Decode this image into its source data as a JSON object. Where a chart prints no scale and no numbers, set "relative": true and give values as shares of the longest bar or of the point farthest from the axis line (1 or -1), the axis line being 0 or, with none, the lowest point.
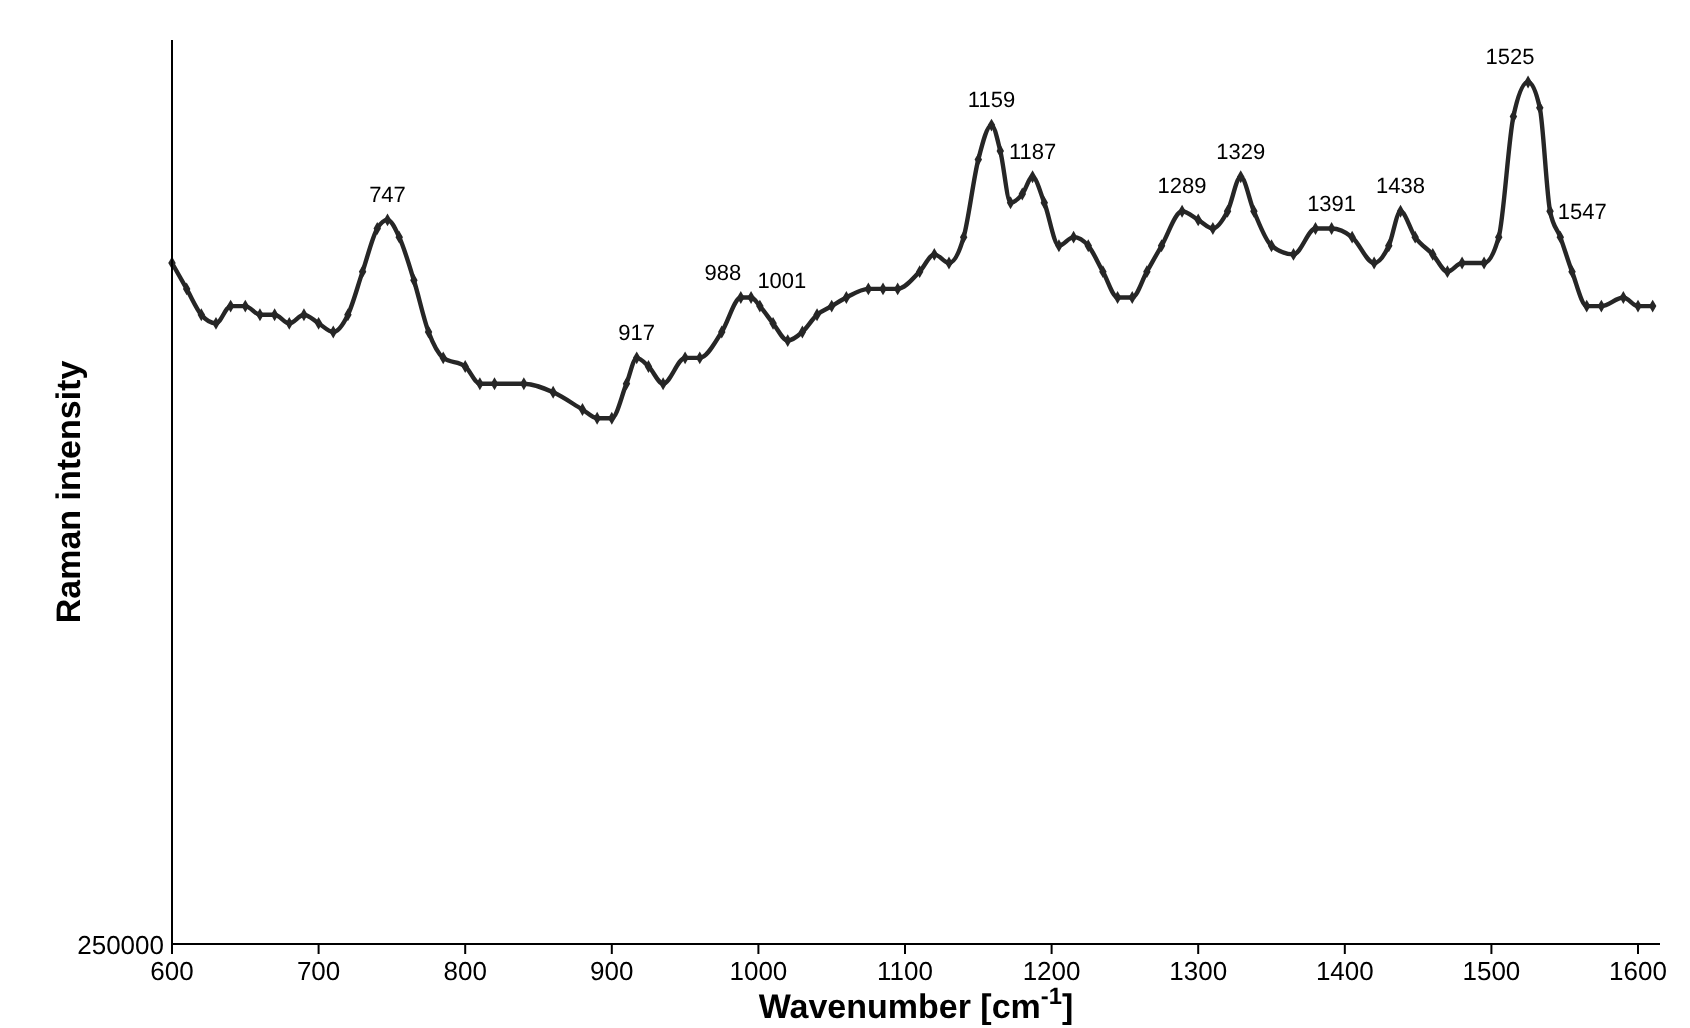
{
  "chart_data": {
    "type": "line",
    "relative": true,
    "xlabel": "Wavenumber [cm$^{-1}$]",
    "ylabel": "Raman intensity",
    "xlim": [
      600,
      1615
    ],
    "xticks": [
      600,
      700,
      800,
      900,
      1000,
      1100,
      1200,
      1300,
      1400,
      1500,
      1600
    ],
    "grid": false,
    "marker": "diamond",
    "line_style": "solid",
    "series": [
      {
        "color": "#262626",
        "x": [
          600,
          610,
          620,
          630,
          640,
          650,
          660,
          670,
          680,
          690,
          700,
          710,
          720,
          730,
          740,
          747,
          755,
          765,
          775,
          785,
          800,
          810,
          820,
          840,
          860,
          880,
          890,
          900,
          910,
          917,
          925,
          935,
          950,
          960,
          975,
          988,
          995,
          1001,
          1010,
          1020,
          1030,
          1040,
          1050,
          1060,
          1075,
          1085,
          1095,
          1110,
          1120,
          1130,
          1140,
          1150,
          1159,
          1165,
          1172,
          1180,
          1187,
          1195,
          1205,
          1215,
          1225,
          1235,
          1245,
          1255,
          1265,
          1275,
          1289,
          1300,
          1310,
          1320,
          1329,
          1338,
          1350,
          1365,
          1380,
          1391,
          1405,
          1420,
          1430,
          1438,
          1448,
          1460,
          1470,
          1480,
          1495,
          1505,
          1515,
          1525,
          1533,
          1540,
          1547,
          1555,
          1565,
          1575,
          1590,
          1600,
          1610
        ],
        "values": [
          0.79,
          0.76,
          0.73,
          0.72,
          0.74,
          0.74,
          0.73,
          0.73,
          0.72,
          0.73,
          0.72,
          0.71,
          0.73,
          0.78,
          0.83,
          0.84,
          0.82,
          0.77,
          0.71,
          0.68,
          0.67,
          0.65,
          0.65,
          0.65,
          0.64,
          0.62,
          0.61,
          0.61,
          0.65,
          0.68,
          0.67,
          0.65,
          0.68,
          0.68,
          0.71,
          0.75,
          0.75,
          0.74,
          0.72,
          0.7,
          0.71,
          0.73,
          0.74,
          0.75,
          0.76,
          0.76,
          0.76,
          0.78,
          0.8,
          0.79,
          0.82,
          0.91,
          0.95,
          0.92,
          0.86,
          0.87,
          0.89,
          0.86,
          0.81,
          0.82,
          0.81,
          0.78,
          0.75,
          0.75,
          0.78,
          0.81,
          0.85,
          0.84,
          0.83,
          0.85,
          0.89,
          0.85,
          0.81,
          0.8,
          0.83,
          0.83,
          0.82,
          0.79,
          0.81,
          0.85,
          0.82,
          0.8,
          0.78,
          0.79,
          0.79,
          0.82,
          0.96,
          1,
          0.97,
          0.85,
          0.82,
          0.78,
          0.74,
          0.74,
          0.75,
          0.74,
          0.74
        ]
      }
    ],
    "annotations": [
      {
        "text": "747",
        "x": 747,
        "y": 0.84
      },
      {
        "text": "917",
        "x": 917,
        "y": 0.68
      },
      {
        "text": "988",
        "x": 988,
        "y": 0.75
      },
      {
        "text": "1001",
        "x": 1001,
        "y": 0.74
      },
      {
        "text": "1159",
        "x": 1159,
        "y": 0.95
      },
      {
        "text": "1187",
        "x": 1187,
        "y": 0.89
      },
      {
        "text": "1289",
        "x": 1289,
        "y": 0.85
      },
      {
        "text": "1329",
        "x": 1329,
        "y": 0.89
      },
      {
        "text": "1391",
        "x": 1391,
        "y": 0.83
      },
      {
        "text": "1438",
        "x": 1438,
        "y": 0.85
      },
      {
        "text": "1525",
        "x": 1525,
        "y": 1
      },
      {
        "text": "1547",
        "x": 1547,
        "y": 0.82
      },
      "250000"
    ]
  }
}
